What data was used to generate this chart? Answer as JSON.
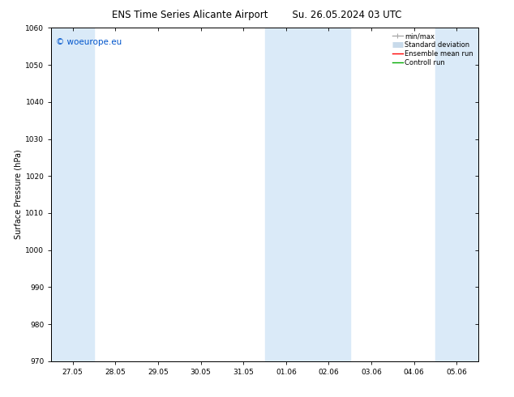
{
  "title_left": "ENS Time Series Alicante Airport",
  "title_right": "Su. 26.05.2024 03 UTC",
  "ylabel": "Surface Pressure (hPa)",
  "ylim": [
    970,
    1060
  ],
  "yticks": [
    970,
    980,
    990,
    1000,
    1010,
    1020,
    1030,
    1040,
    1050,
    1060
  ],
  "xtick_labels": [
    "27.05",
    "28.05",
    "29.05",
    "30.05",
    "31.05",
    "01.06",
    "02.06",
    "03.06",
    "04.06",
    "05.06"
  ],
  "watermark": "© woeurope.eu",
  "watermark_color": "#0055cc",
  "background_color": "#ffffff",
  "shaded_band_color": "#daeaf8",
  "shaded_ranges": [
    [
      -0.5,
      0.5
    ],
    [
      4.5,
      6.5
    ],
    [
      8.5,
      9.5
    ]
  ],
  "legend_items": [
    {
      "label": "min/max",
      "color": "#aaaaaa",
      "lw": 1.0
    },
    {
      "label": "Standard deviation",
      "color": "#c8daea",
      "lw": 5
    },
    {
      "label": "Ensemble mean run",
      "color": "#ff0000",
      "lw": 1.0
    },
    {
      "label": "Controll run",
      "color": "#00aa00",
      "lw": 1.0
    }
  ],
  "title_fontsize": 8.5,
  "axis_fontsize": 7,
  "tick_fontsize": 6.5,
  "legend_fontsize": 6.0,
  "watermark_fontsize": 7.5
}
